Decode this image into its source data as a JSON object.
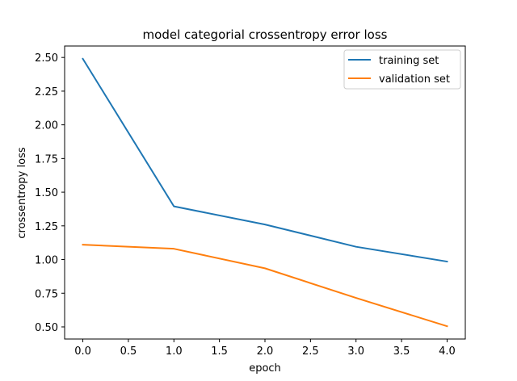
{
  "chart_data": {
    "type": "line",
    "title": "model categorial crossentropy error loss",
    "xlabel": "epoch",
    "ylabel": "crossentropy loss",
    "x": [
      0,
      1,
      2,
      3,
      4
    ],
    "series": [
      {
        "name": "training set",
        "values": [
          2.49,
          1.395,
          1.26,
          1.095,
          0.985
        ],
        "color": "#1f77b4"
      },
      {
        "name": "validation set",
        "values": [
          1.11,
          1.08,
          0.935,
          0.715,
          0.505
        ],
        "color": "#ff7f0e"
      }
    ],
    "xticks": [
      "0.0",
      "0.5",
      "1.0",
      "1.5",
      "2.0",
      "2.5",
      "3.0",
      "3.5",
      "4.0"
    ],
    "yticks": [
      "0.50",
      "0.75",
      "1.00",
      "1.25",
      "1.50",
      "1.75",
      "2.00",
      "2.25",
      "2.50"
    ],
    "xlim": [
      -0.2,
      4.2
    ],
    "ylim": [
      0.41,
      2.585
    ],
    "grid": false,
    "legend_position": "top-right"
  }
}
